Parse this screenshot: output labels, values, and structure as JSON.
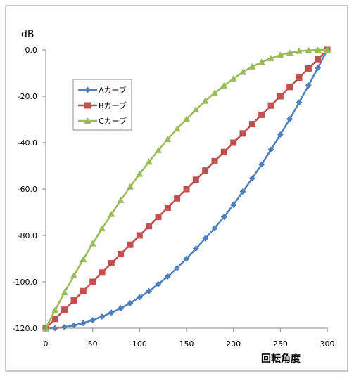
{
  "chart_data": {
    "type": "line",
    "title": "",
    "xlabel": "回転角度",
    "ylabel": "dB",
    "xlim": [
      0,
      300
    ],
    "ylim": [
      -120,
      0
    ],
    "xticks": [
      0,
      50,
      100,
      150,
      200,
      250,
      300
    ],
    "yticks": [
      0,
      -20,
      -40,
      -60,
      -80,
      -100,
      -120
    ],
    "xtick_labels": [
      "0",
      "50",
      "100",
      "150",
      "200",
      "250",
      "300"
    ],
    "ytick_labels": [
      "0.0",
      "-20.0",
      "-40.0",
      "-60.0",
      "-80.0",
      "-100.0",
      "-120.0"
    ],
    "grid": "none",
    "legend_position": "upper-left-inside",
    "x": [
      0,
      10,
      20,
      30,
      40,
      50,
      60,
      70,
      80,
      90,
      100,
      110,
      120,
      130,
      140,
      150,
      160,
      170,
      180,
      190,
      200,
      210,
      220,
      230,
      240,
      250,
      260,
      270,
      280,
      290,
      300
    ],
    "series": [
      {
        "name": "Aカーブ",
        "color": "#4f81bd",
        "marker": "diamond",
        "values": [
          -120,
          -120,
          -119.5,
          -118.8,
          -117.8,
          -116.5,
          -115,
          -113.3,
          -111.4,
          -109.2,
          -106.7,
          -104,
          -101,
          -97.7,
          -94,
          -90,
          -85.7,
          -81.3,
          -76.8,
          -72,
          -66.8,
          -61.1,
          -55.4,
          -49.4,
          -43,
          -36.5,
          -29.8,
          -22.7,
          -15.3,
          -7.8,
          0
        ]
      },
      {
        "name": "Bカーブ",
        "color": "#c0504d",
        "marker": "square",
        "values": [
          -120,
          -116,
          -112,
          -108,
          -104,
          -100,
          -96,
          -92,
          -88,
          -84,
          -80,
          -76,
          -72,
          -68,
          -64,
          -60,
          -56,
          -52,
          -48,
          -44,
          -40,
          -36,
          -32,
          -28,
          -24,
          -20,
          -16,
          -12,
          -8,
          -4,
          0
        ]
      },
      {
        "name": "Cカーブ",
        "color": "#9bbb59",
        "marker": "triangle",
        "values": [
          -120,
          -112.2,
          -104.6,
          -97.3,
          -90.3,
          -83.5,
          -77,
          -70.8,
          -64.8,
          -59,
          -53.5,
          -48.3,
          -43.3,
          -38.5,
          -34,
          -29.8,
          -25.8,
          -22,
          -18.6,
          -15.4,
          -12.4,
          -9.6,
          -7.2,
          -5.3,
          -3.6,
          -2.2,
          -1.2,
          -0.5,
          -0.2,
          0,
          0
        ]
      }
    ]
  }
}
